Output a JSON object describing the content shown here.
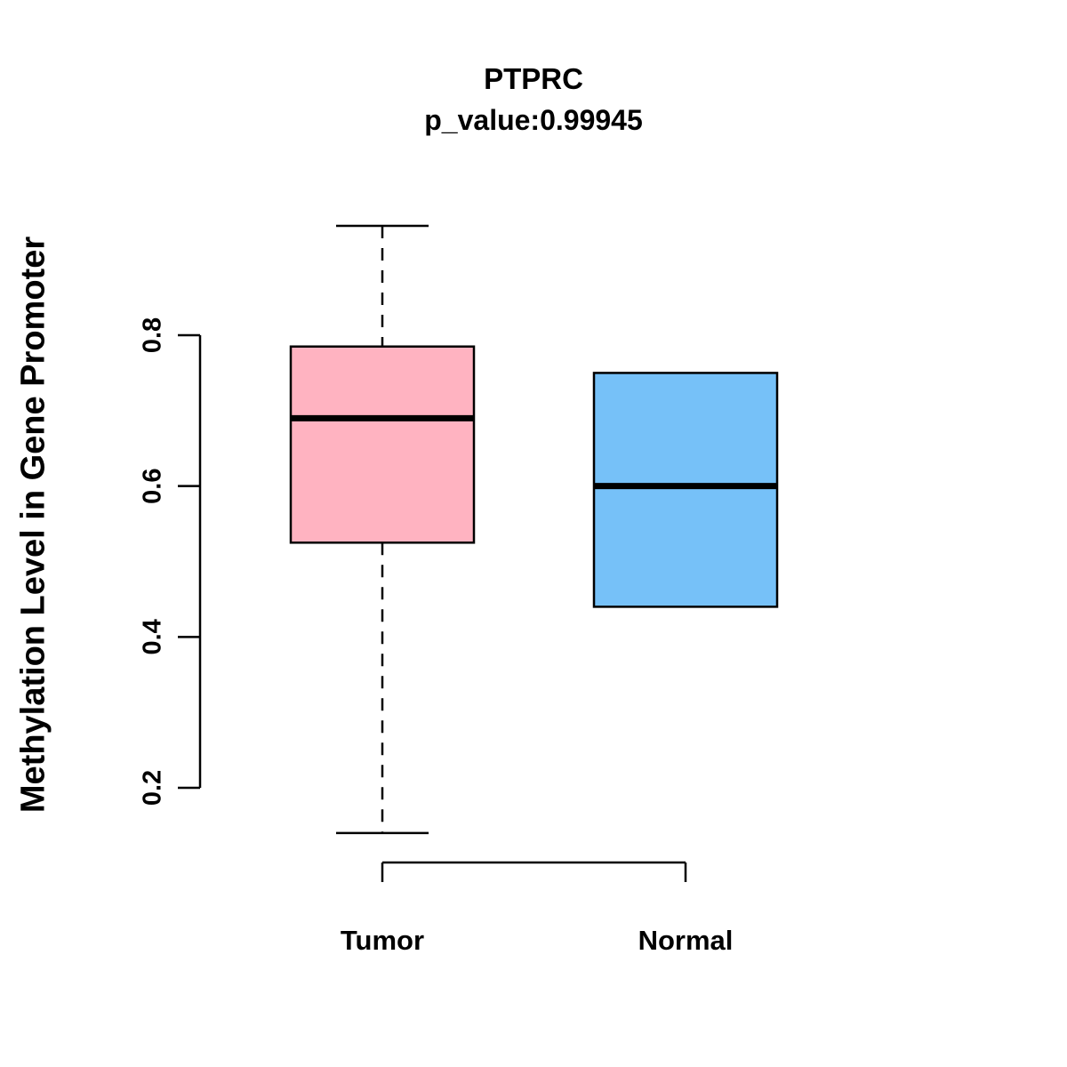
{
  "title": "PTPRC",
  "subtitle": "p_value:0.99945",
  "chart_data": {
    "type": "boxplot",
    "title": "PTPRC",
    "subtitle": "p_value:0.99945",
    "ylabel": "Methylation Level in Gene Promoter",
    "xlabel": "",
    "categories": [
      "Tumor",
      "Normal"
    ],
    "yticks": [
      0.2,
      0.4,
      0.6,
      0.8
    ],
    "ylim": [
      0.1,
      0.97
    ],
    "grid": false,
    "legend": "none",
    "series": [
      {
        "name": "Tumor",
        "color": "#FFB3C1",
        "whisker_low": 0.14,
        "q1": 0.525,
        "median": 0.69,
        "q3": 0.785,
        "whisker_high": 0.945
      },
      {
        "name": "Normal",
        "color": "#76C1F8",
        "whisker_low": 0.44,
        "q1": 0.44,
        "median": 0.6,
        "q3": 0.75,
        "whisker_high": 0.75
      }
    ]
  }
}
